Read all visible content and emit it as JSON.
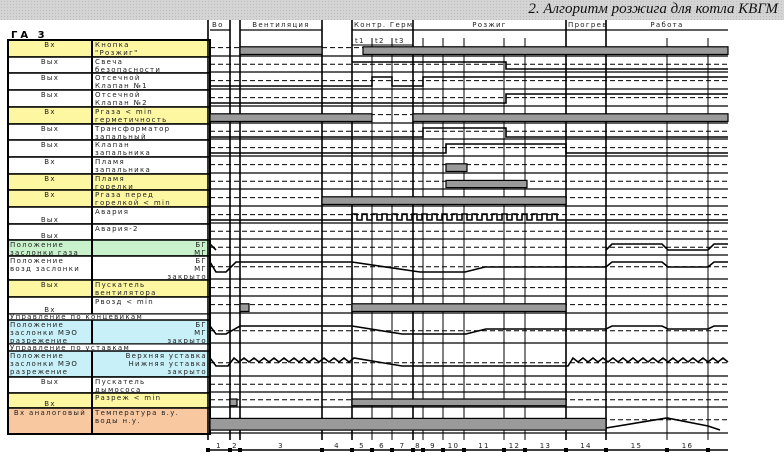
{
  "header": {
    "title": "2. Алгоритм розжига для котла КВГМ"
  },
  "unit": "ГА 3",
  "phases": [
    {
      "label": "Во"
    },
    {
      "label": "Вентиляция"
    },
    {
      "label": "Контр. Герм"
    },
    {
      "label": "Розжиг"
    },
    {
      "label": "Прогрев"
    },
    {
      "label": "Работа"
    }
  ],
  "sub_intervals": [
    "t1",
    "t2",
    "t3"
  ],
  "rows": [
    {
      "type": "Вх",
      "l1": "Кнопка",
      "l2": "\"Розжиг\"",
      "color": "#fdf7a2"
    },
    {
      "type": "Вых",
      "l1": "Свеча",
      "l2": "безопасности",
      "color": "#ffffff"
    },
    {
      "type": "Вых",
      "l1": "Отсечной",
      "l2": "Клапан №1",
      "color": "#ffffff"
    },
    {
      "type": "Вых",
      "l1": "Отсечной",
      "l2": "Клапан №2",
      "color": "#ffffff"
    },
    {
      "type": "Вх",
      "l1": "Pгаза < min",
      "l2": "герметичность",
      "color": "#fdf7a2"
    },
    {
      "type": "Вых",
      "l1": "Трансформатор",
      "l2": "запальный",
      "color": "#ffffff"
    },
    {
      "type": "Вых",
      "l1": "Клапан",
      "l2": "запальника",
      "color": "#ffffff"
    },
    {
      "type": "Вх",
      "l1": "Пламя",
      "l2": "запальника",
      "color": "#ffffff"
    },
    {
      "type": "Вх",
      "l1": "Пламя",
      "l2": "горелки",
      "color": "#fdf7a2"
    },
    {
      "type": "Вх",
      "l1": "Pгаза перед",
      "l2": "горелкой < min",
      "color": "#fdf7a2"
    },
    {
      "type": "Вых",
      "l1": "Авария",
      "l2": "",
      "color": "#ffffff"
    },
    {
      "type": "Вых",
      "l1": "Авария-2",
      "l2": "",
      "color": "#ffffff"
    },
    {
      "type": "Положение заслонки газа",
      "l1": "",
      "l2": "",
      "levels": [
        "БГ",
        "МГ"
      ],
      "color": "#c9f2cc"
    },
    {
      "type": "Положение возд заслонки",
      "l1": "",
      "l2": "",
      "levels": [
        "БГ",
        "МГ",
        "закрыто"
      ],
      "color": "#ffffff"
    },
    {
      "type": "Вых",
      "l1": "Пускатель",
      "l2": "вентилятора",
      "color": "#fdf7a2"
    },
    {
      "type": "Вх",
      "l1": "Pвозд < min",
      "l2": "",
      "color": "#ffffff"
    },
    {
      "section": "Управление по концевикам"
    },
    {
      "type": "Положение заслонки МЭО разрежение",
      "l1": "",
      "l2": "",
      "levels": [
        "БГ",
        "МГ",
        "закрыто"
      ],
      "color": "#c8f0f8"
    },
    {
      "section": "Управление по уставкам"
    },
    {
      "type": "Положение заслонки МЭО разрежение",
      "l1": "",
      "l2": "",
      "levels": [
        "Верхняя уставка",
        "Нижняя уставка",
        "закрыто"
      ],
      "color": "#c8f0f8"
    },
    {
      "type": "Вых",
      "l1": "Пускатель",
      "l2": "дымососа",
      "color": "#ffffff"
    },
    {
      "type": "Вх",
      "l1": "Разреж < min",
      "l2": "",
      "color": "#fdf7a2"
    },
    {
      "type": "Вх аналоговый",
      "l1": "Температура  в.у.",
      "l2": "воды        н.у.",
      "color": "#f8c9a0"
    }
  ],
  "steps": [
    "1",
    "2",
    "3",
    "4",
    "5",
    "6",
    "7",
    "8",
    "9",
    "10",
    "11",
    "12",
    "13",
    "14",
    "15",
    "16"
  ],
  "colors": {
    "active_bar": "#9a9a9a",
    "header_bg": "#d4d4d4"
  }
}
